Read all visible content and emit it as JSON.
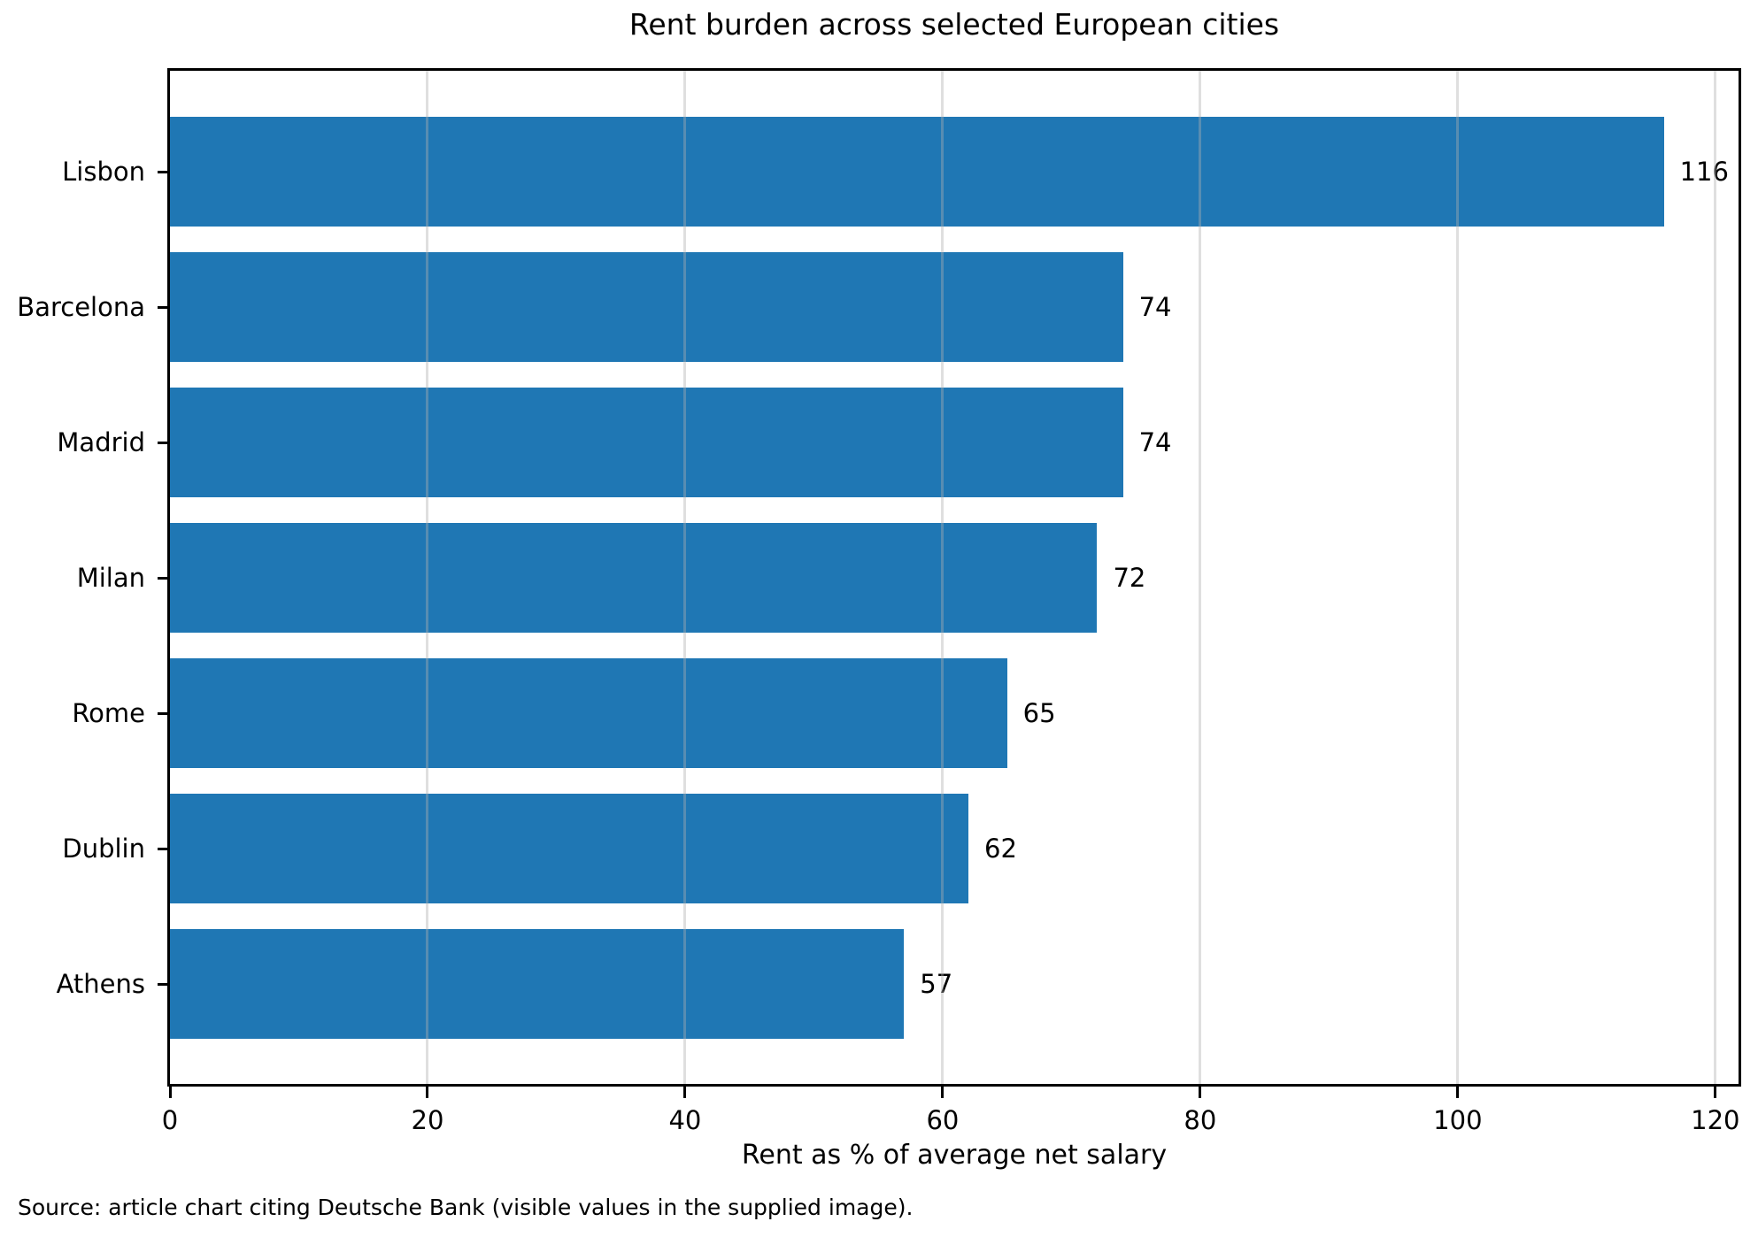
{
  "title": "Rent burden across selected European cities",
  "x_axis_title": "Rent as % of average net salary",
  "source_note": "Source: article chart citing Deutsche Bank (visible values in the supplied image).",
  "colors": {
    "bar": "#1f77b4",
    "grid": "#b0b0b0",
    "text": "#000000",
    "background": "#ffffff",
    "spine": "#000000"
  },
  "chart_data": {
    "type": "bar",
    "orientation": "horizontal",
    "title": "Rent burden across selected European cities",
    "xlabel": "Rent as % of average net salary",
    "ylabel": "",
    "categories": [
      "Lisbon",
      "Barcelona",
      "Madrid",
      "Milan",
      "Rome",
      "Dublin",
      "Athens"
    ],
    "values": [
      116,
      74,
      74,
      72,
      65,
      62,
      57
    ],
    "value_labels": [
      "116",
      "74",
      "74",
      "72",
      "65",
      "62",
      "57"
    ],
    "xlim": [
      0,
      121.8
    ],
    "xticks": [
      0,
      20,
      40,
      60,
      80,
      100,
      120
    ],
    "grid": true,
    "grid_axis": "x",
    "legend": false,
    "bar_color": "#1f77b4"
  }
}
